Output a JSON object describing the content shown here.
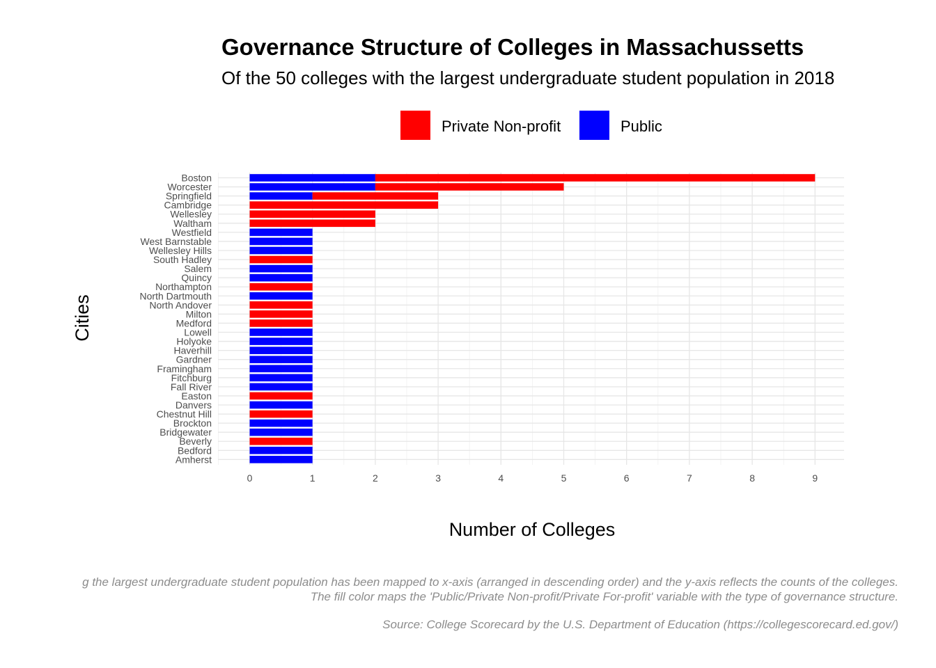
{
  "chart_data": {
    "type": "bar",
    "orientation": "horizontal",
    "stacked": true,
    "title": "Governance Structure of Colleges in Massachussetts",
    "subtitle": "Of the 50 colleges with the largest undergraduate student population in 2018",
    "xlabel": "Number of Colleges",
    "ylabel": "Cities",
    "xlim": [
      0,
      9.4
    ],
    "xticks": [
      "0",
      "1",
      "2",
      "3",
      "4",
      "5",
      "6",
      "7",
      "8",
      "9"
    ],
    "grid": true,
    "legend_position": "top",
    "categories": [
      "Boston",
      "Worcester",
      "Springfield",
      "Cambridge",
      "Wellesley",
      "Waltham",
      "Westfield",
      "West Barnstable",
      "Wellesley Hills",
      "South Hadley",
      "Salem",
      "Quincy",
      "Northampton",
      "North Dartmouth",
      "North Andover",
      "Milton",
      "Medford",
      "Lowell",
      "Holyoke",
      "Haverhill",
      "Gardner",
      "Framingham",
      "Fitchburg",
      "Fall River",
      "Easton",
      "Danvers",
      "Chestnut Hill",
      "Brockton",
      "Bridgewater",
      "Beverly",
      "Bedford",
      "Amherst"
    ],
    "series": [
      {
        "name": "Public",
        "color": "#0000ff",
        "values": [
          2,
          2,
          1,
          0,
          0,
          0,
          1,
          1,
          1,
          0,
          1,
          1,
          0,
          1,
          0,
          0,
          0,
          1,
          1,
          1,
          1,
          1,
          1,
          1,
          0,
          1,
          0,
          1,
          1,
          0,
          1,
          1
        ]
      },
      {
        "name": "Private Non-profit",
        "color": "#ff0000",
        "values": [
          7,
          3,
          2,
          3,
          2,
          2,
          0,
          0,
          0,
          1,
          0,
          0,
          1,
          0,
          1,
          1,
          1,
          0,
          0,
          0,
          0,
          0,
          0,
          0,
          1,
          0,
          1,
          0,
          0,
          1,
          0,
          0
        ]
      }
    ],
    "legend": [
      {
        "label": "Private Non-profit",
        "color": "#ff0000"
      },
      {
        "label": "Public",
        "color": "#0000ff"
      }
    ],
    "caption": [
      "g the  largest undergraduate student population has been mapped to x-axis (arranged in descending order) and the y-axis reflects the counts of the colleges.",
      "The fill color maps the 'Public/Private Non-profit/Private For-profit' variable with the type of governance structure.",
      "Source: College Scorecard by the U.S. Department of Education (https://collegescorecard.ed.gov/)"
    ]
  }
}
